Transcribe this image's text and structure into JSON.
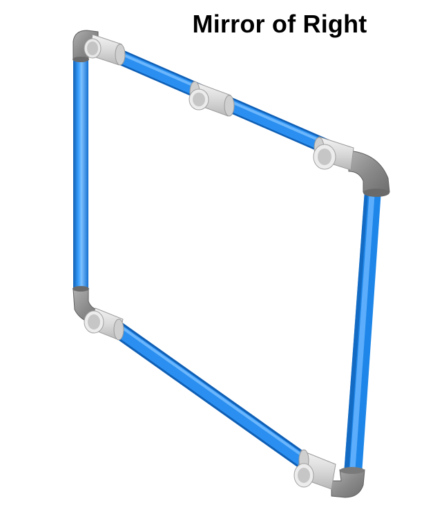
{
  "title": "Mirror of Right",
  "colors": {
    "pipe": "#1e86e8",
    "pipe_highlight": "#7cc0ff",
    "pipe_shadow": "#0f5fb5",
    "tee_fitting": "#dcdcdc",
    "elbow_fitting": "#8f8f8f"
  },
  "components": {
    "pipes": [
      "top-pipe",
      "left-pipe",
      "right-pipe",
      "bottom-pipe"
    ],
    "elbows": [
      "top-left-elbow",
      "top-right-elbow",
      "bottom-left-elbow",
      "bottom-right-elbow"
    ],
    "tees": [
      "top-left-tee",
      "top-middle-tee",
      "top-right-tee",
      "bottom-left-tee",
      "bottom-right-tee"
    ]
  }
}
